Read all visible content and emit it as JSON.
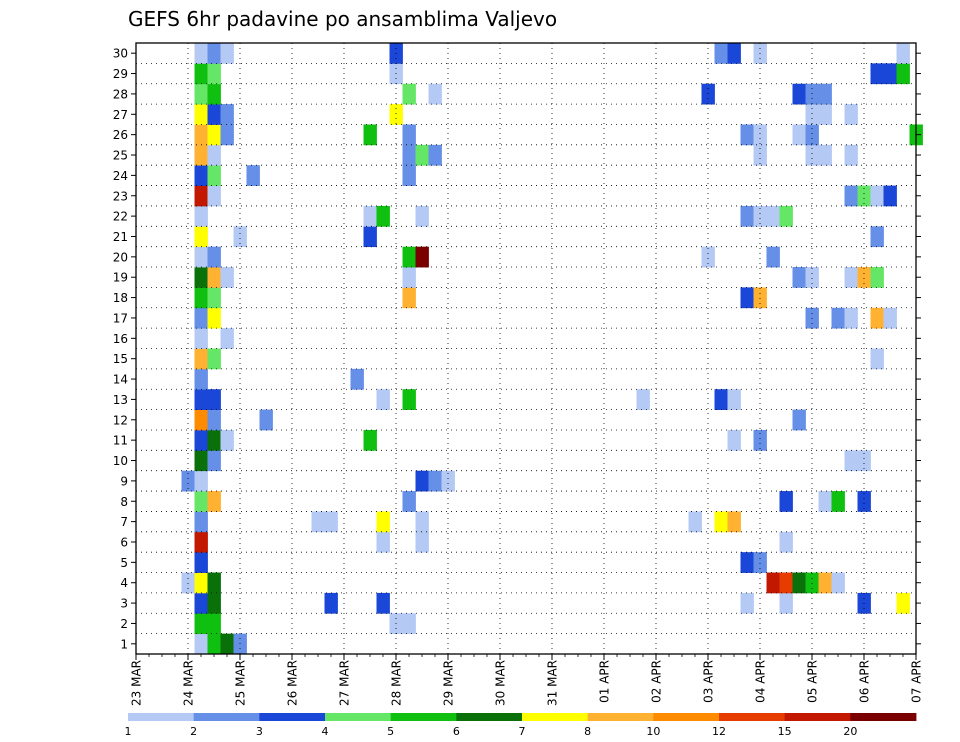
{
  "chart_data": {
    "type": "heatmap",
    "title": "GEFS 6hr padavine po ansamblima Valjevo",
    "xlabel": "",
    "ylabel": "",
    "x_ticks": [
      "23 MAR",
      "24 MAR",
      "25 MAR",
      "26 MAR",
      "27 MAR",
      "28 MAR",
      "29 MAR",
      "30 MAR",
      "31 MAR",
      "01 APR",
      "02 APR",
      "03 APR",
      "04 APR",
      "05 APR",
      "06 APR",
      "07 APR"
    ],
    "x_range_steps": [
      0,
      60
    ],
    "y_ticks": [
      1,
      2,
      3,
      4,
      5,
      6,
      7,
      8,
      9,
      10,
      11,
      12,
      13,
      14,
      15,
      16,
      17,
      18,
      19,
      20,
      21,
      22,
      23,
      24,
      25,
      26,
      27,
      28,
      29,
      30
    ],
    "y_range": [
      0,
      30
    ],
    "grid": true,
    "colorbar": {
      "levels": [
        "1",
        "2",
        "3",
        "4",
        "5",
        "6",
        "7",
        "8",
        "10",
        "12",
        "15",
        "20"
      ],
      "colors": [
        "#b5c9f5",
        "#6690e8",
        "#1a47d8",
        "#66e666",
        "#10c010",
        "#0a700a",
        "#ffff00",
        "#ffb232",
        "#ff8c00",
        "#e63c00",
        "#c21800",
        "#7a0000"
      ]
    },
    "cells": [
      [
        5,
        1,
        1
      ],
      [
        6,
        1,
        5
      ],
      [
        7,
        1,
        6
      ],
      [
        8,
        1,
        2
      ],
      [
        5,
        2,
        5
      ],
      [
        6,
        2,
        5
      ],
      [
        20,
        2,
        1
      ],
      [
        21,
        2,
        1
      ],
      [
        5,
        3,
        3
      ],
      [
        6,
        3,
        6
      ],
      [
        15,
        3,
        3
      ],
      [
        19,
        3,
        3
      ],
      [
        47,
        3,
        1
      ],
      [
        50,
        3,
        1
      ],
      [
        56,
        3,
        3
      ],
      [
        59,
        3,
        7
      ],
      [
        4,
        4,
        1
      ],
      [
        5,
        4,
        7
      ],
      [
        6,
        4,
        6
      ],
      [
        49,
        4,
        11
      ],
      [
        50,
        4,
        10
      ],
      [
        51,
        4,
        6
      ],
      [
        52,
        4,
        5
      ],
      [
        53,
        4,
        8
      ],
      [
        54,
        4,
        1
      ],
      [
        5,
        5,
        3
      ],
      [
        47,
        5,
        3
      ],
      [
        48,
        5,
        2
      ],
      [
        5,
        6,
        11
      ],
      [
        19,
        6,
        1
      ],
      [
        22,
        6,
        1
      ],
      [
        50,
        6,
        1
      ],
      [
        5,
        7,
        2
      ],
      [
        14,
        7,
        1
      ],
      [
        15,
        7,
        1
      ],
      [
        19,
        7,
        7
      ],
      [
        22,
        7,
        1
      ],
      [
        43,
        7,
        1
      ],
      [
        45,
        7,
        7
      ],
      [
        46,
        7,
        8
      ],
      [
        5,
        8,
        4
      ],
      [
        6,
        8,
        8
      ],
      [
        21,
        8,
        2
      ],
      [
        50,
        8,
        3
      ],
      [
        53,
        8,
        1
      ],
      [
        54,
        8,
        5
      ],
      [
        56,
        8,
        3
      ],
      [
        4,
        9,
        2
      ],
      [
        5,
        9,
        1
      ],
      [
        22,
        9,
        3
      ],
      [
        23,
        9,
        2
      ],
      [
        24,
        9,
        1
      ],
      [
        5,
        10,
        6
      ],
      [
        6,
        10,
        2
      ],
      [
        55,
        10,
        1
      ],
      [
        56,
        10,
        1
      ],
      [
        5,
        11,
        3
      ],
      [
        6,
        11,
        6
      ],
      [
        7,
        11,
        1
      ],
      [
        18,
        11,
        5
      ],
      [
        46,
        11,
        1
      ],
      [
        48,
        11,
        2
      ],
      [
        5,
        12,
        9
      ],
      [
        6,
        12,
        2
      ],
      [
        10,
        12,
        2
      ],
      [
        51,
        12,
        2
      ],
      [
        5,
        13,
        3
      ],
      [
        6,
        13,
        3
      ],
      [
        19,
        13,
        1
      ],
      [
        21,
        13,
        5
      ],
      [
        39,
        13,
        1
      ],
      [
        45,
        13,
        3
      ],
      [
        46,
        13,
        1
      ],
      [
        5,
        14,
        2
      ],
      [
        17,
        14,
        2
      ],
      [
        5,
        15,
        8
      ],
      [
        6,
        15,
        4
      ],
      [
        57,
        15,
        1
      ],
      [
        5,
        16,
        1
      ],
      [
        7,
        16,
        1
      ],
      [
        5,
        17,
        2
      ],
      [
        6,
        17,
        7
      ],
      [
        52,
        17,
        2
      ],
      [
        54,
        17,
        2
      ],
      [
        55,
        17,
        1
      ],
      [
        57,
        17,
        8
      ],
      [
        58,
        17,
        1
      ],
      [
        5,
        18,
        5
      ],
      [
        6,
        18,
        4
      ],
      [
        21,
        18,
        8
      ],
      [
        47,
        18,
        3
      ],
      [
        48,
        18,
        8
      ],
      [
        5,
        19,
        6
      ],
      [
        6,
        19,
        8
      ],
      [
        7,
        19,
        1
      ],
      [
        21,
        19,
        1
      ],
      [
        51,
        19,
        2
      ],
      [
        52,
        19,
        1
      ],
      [
        55,
        19,
        1
      ],
      [
        56,
        19,
        8
      ],
      [
        57,
        19,
        4
      ],
      [
        5,
        20,
        1
      ],
      [
        6,
        20,
        2
      ],
      [
        21,
        20,
        5
      ],
      [
        22,
        20,
        12
      ],
      [
        44,
        20,
        1
      ],
      [
        49,
        20,
        2
      ],
      [
        5,
        21,
        7
      ],
      [
        8,
        21,
        1
      ],
      [
        18,
        21,
        3
      ],
      [
        57,
        21,
        2
      ],
      [
        5,
        22,
        1
      ],
      [
        18,
        22,
        1
      ],
      [
        19,
        22,
        5
      ],
      [
        22,
        22,
        1
      ],
      [
        47,
        22,
        2
      ],
      [
        48,
        22,
        1
      ],
      [
        49,
        22,
        1
      ],
      [
        50,
        22,
        4
      ],
      [
        5,
        23,
        11
      ],
      [
        6,
        23,
        1
      ],
      [
        55,
        23,
        2
      ],
      [
        56,
        23,
        4
      ],
      [
        57,
        23,
        1
      ],
      [
        58,
        23,
        3
      ],
      [
        5,
        24,
        3
      ],
      [
        6,
        24,
        4
      ],
      [
        9,
        24,
        2
      ],
      [
        21,
        24,
        2
      ],
      [
        5,
        25,
        8
      ],
      [
        6,
        25,
        1
      ],
      [
        21,
        25,
        2
      ],
      [
        22,
        25,
        4
      ],
      [
        23,
        25,
        2
      ],
      [
        48,
        25,
        1
      ],
      [
        52,
        25,
        1
      ],
      [
        53,
        25,
        1
      ],
      [
        55,
        25,
        1
      ],
      [
        5,
        26,
        8
      ],
      [
        6,
        26,
        7
      ],
      [
        7,
        26,
        2
      ],
      [
        18,
        26,
        5
      ],
      [
        21,
        26,
        2
      ],
      [
        47,
        26,
        2
      ],
      [
        48,
        26,
        1
      ],
      [
        51,
        26,
        1
      ],
      [
        52,
        26,
        2
      ],
      [
        60,
        26,
        5
      ],
      [
        5,
        27,
        7
      ],
      [
        6,
        27,
        3
      ],
      [
        7,
        27,
        2
      ],
      [
        20,
        27,
        7
      ],
      [
        52,
        27,
        1
      ],
      [
        53,
        27,
        1
      ],
      [
        55,
        27,
        1
      ],
      [
        5,
        28,
        4
      ],
      [
        6,
        28,
        5
      ],
      [
        21,
        28,
        4
      ],
      [
        23,
        28,
        1
      ],
      [
        44,
        28,
        3
      ],
      [
        51,
        28,
        3
      ],
      [
        52,
        28,
        2
      ],
      [
        53,
        28,
        2
      ],
      [
        5,
        29,
        5
      ],
      [
        6,
        29,
        4
      ],
      [
        20,
        29,
        1
      ],
      [
        57,
        29,
        3
      ],
      [
        58,
        29,
        3
      ],
      [
        59,
        29,
        5
      ],
      [
        5,
        30,
        1
      ],
      [
        6,
        30,
        2
      ],
      [
        7,
        30,
        1
      ],
      [
        20,
        30,
        3
      ],
      [
        45,
        30,
        2
      ],
      [
        46,
        30,
        3
      ],
      [
        48,
        30,
        1
      ],
      [
        59,
        30,
        1
      ]
    ]
  }
}
